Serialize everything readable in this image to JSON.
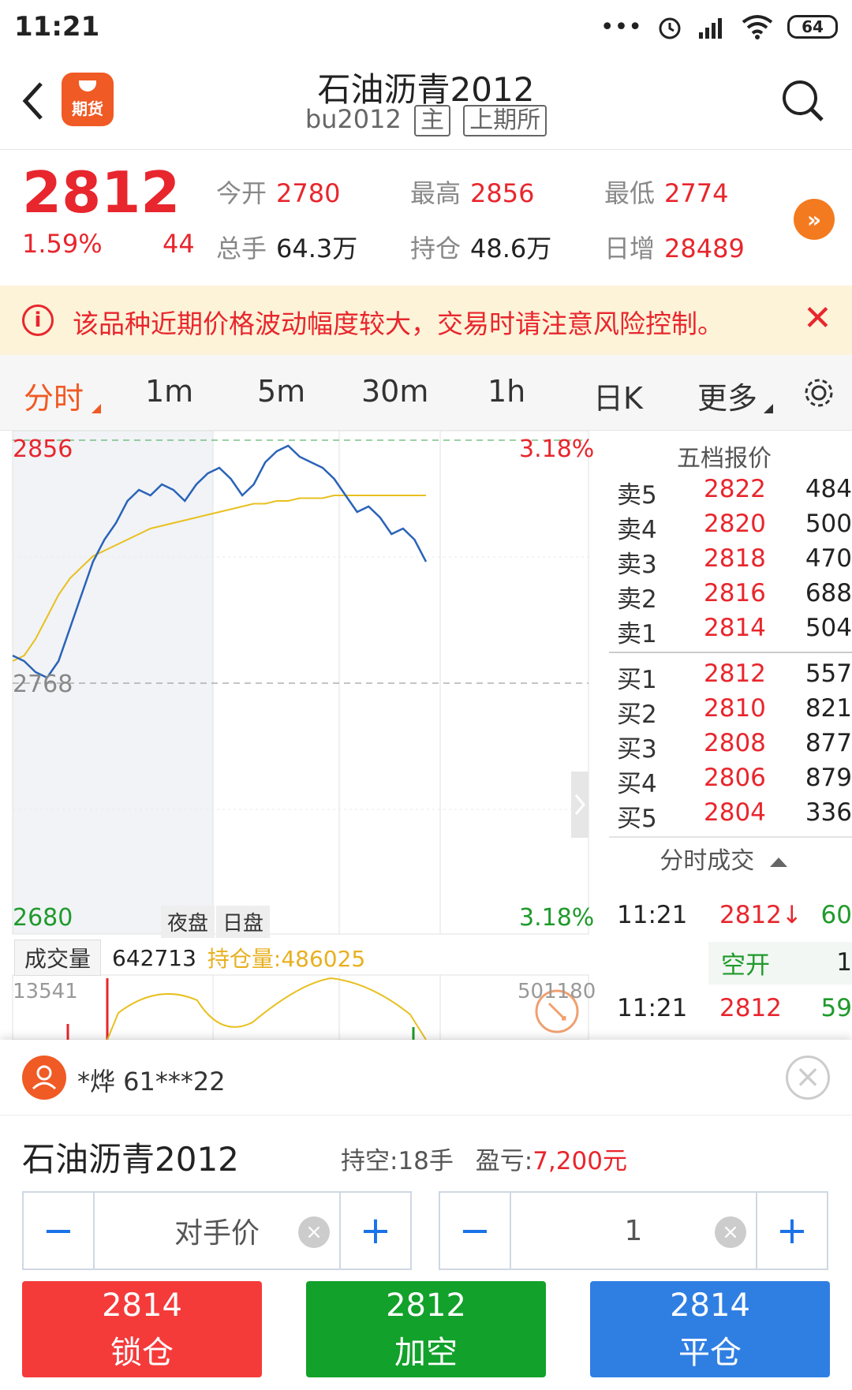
{
  "status_bar": {
    "time": "11:21",
    "dots": "•••",
    "battery": "64"
  },
  "header": {
    "title": "石油沥青2012",
    "code": "bu2012",
    "tag_main": "主",
    "tag_exchange": "上期所",
    "logo_text": "期货"
  },
  "quote": {
    "price": "2812",
    "pct": "1.59%",
    "change": "44",
    "open_label": "今开",
    "open": "2780",
    "high_label": "最高",
    "high": "2856",
    "low_label": "最低",
    "low": "2774",
    "vol_label": "总手",
    "vol": "64.3万",
    "oi_label": "持仓",
    "oi": "48.6万",
    "inc_label": "日增",
    "inc": "28489",
    "more_icon": "»"
  },
  "warning": {
    "icon": "i",
    "text": "该品种近期价格波动幅度较大，交易时请注意风险控制。",
    "close": "✕"
  },
  "tabs": [
    "分时",
    "1m",
    "5m",
    "30m",
    "1h",
    "日K",
    "更多"
  ],
  "chart": {
    "top_price": "2856",
    "mid_price": "2768",
    "bottom_price": "2680",
    "top_pct": "3.18%",
    "bottom_pct": "3.18%",
    "seg_night": "夜盘",
    "seg_day": "日盘",
    "vol_tag": "成交量",
    "vol_value": "642713",
    "oi_value": "持仓量:486025",
    "vol_left": "13541",
    "vol_right": "501180"
  },
  "chart_data": {
    "type": "line",
    "title": "",
    "ylim": [
      2680,
      2856
    ],
    "series": [
      {
        "name": "",
        "values": [
          2778,
          2776,
          2772,
          2770,
          2776,
          2788,
          2800,
          2812,
          2820,
          2826,
          2834,
          2838,
          2836,
          2840,
          2838,
          2834,
          2840,
          2844,
          2846,
          2842,
          2836,
          2840,
          2848,
          2852,
          2854,
          2850,
          2848,
          2846,
          2842,
          2836,
          2830,
          2832,
          2828,
          2822,
          2824,
          2820,
          2812
        ]
      },
      {
        "name": "",
        "values": [
          2776,
          2778,
          2784,
          2792,
          2800,
          2806,
          2810,
          2814,
          2816,
          2818,
          2820,
          2822,
          2824,
          2825,
          2826,
          2827,
          2828,
          2829,
          2830,
          2831,
          2832,
          2833,
          2833,
          2834,
          2834,
          2835,
          2835,
          2835,
          2836,
          2836,
          2836,
          2836,
          2836,
          2836,
          2836,
          2836,
          2836
        ]
      }
    ]
  },
  "book": {
    "title": "五档报价",
    "asks": [
      {
        "name": "卖5",
        "price": "2822",
        "qty": "484"
      },
      {
        "name": "卖4",
        "price": "2820",
        "qty": "500"
      },
      {
        "name": "卖3",
        "price": "2818",
        "qty": "470"
      },
      {
        "name": "卖2",
        "price": "2816",
        "qty": "688"
      },
      {
        "name": "卖1",
        "price": "2814",
        "qty": "504"
      }
    ],
    "bids": [
      {
        "name": "买1",
        "price": "2812",
        "qty": "557"
      },
      {
        "name": "买2",
        "price": "2810",
        "qty": "821"
      },
      {
        "name": "买3",
        "price": "2808",
        "qty": "877"
      },
      {
        "name": "买4",
        "price": "2806",
        "qty": "879"
      },
      {
        "name": "买5",
        "price": "2804",
        "qty": "336"
      }
    ],
    "trades_title": "分时成交",
    "trades": [
      {
        "time": "11:21",
        "price": "2812↓",
        "qty": "60",
        "note": "空开",
        "note_qty": "1"
      },
      {
        "time": "11:21",
        "price": "2812",
        "qty": "59"
      }
    ]
  },
  "order_panel": {
    "account": "*烨  61***22",
    "contract": "石油沥青2012",
    "position": "持空:18手",
    "pnl_label": "盈亏:",
    "pnl": "7,200元",
    "price_mode": "对手价",
    "qty": "1",
    "minus": "−",
    "plus": "+",
    "clear": "×",
    "buttons": [
      {
        "price": "2814",
        "label": "锁仓",
        "color": "#f53a3a"
      },
      {
        "price": "2812",
        "label": "加空",
        "color": "#12a12a"
      },
      {
        "price": "2814",
        "label": "平仓",
        "color": "#2f7fe3"
      }
    ]
  }
}
